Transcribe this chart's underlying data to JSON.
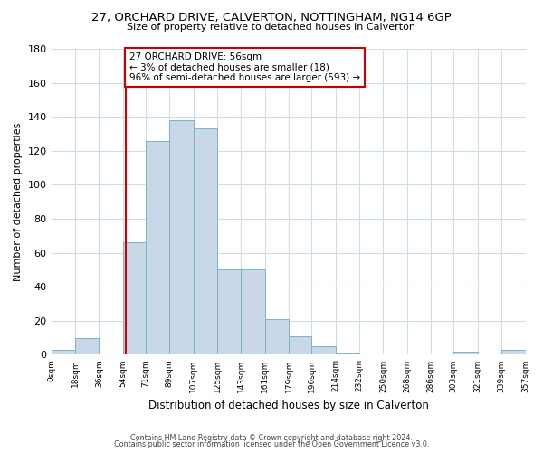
{
  "title": "27, ORCHARD DRIVE, CALVERTON, NOTTINGHAM, NG14 6GP",
  "subtitle": "Size of property relative to detached houses in Calverton",
  "xlabel": "Distribution of detached houses by size in Calverton",
  "ylabel": "Number of detached properties",
  "bar_edges": [
    0,
    18,
    36,
    54,
    71,
    89,
    107,
    125,
    143,
    161,
    179,
    196,
    214,
    232,
    250,
    268,
    286,
    303,
    321,
    339,
    357
  ],
  "bar_heights": [
    3,
    10,
    0,
    66,
    126,
    138,
    133,
    50,
    50,
    21,
    11,
    5,
    1,
    0,
    0,
    0,
    0,
    2,
    0,
    3
  ],
  "bar_color": "#c8d8e8",
  "bar_edgecolor": "#7ab4cc",
  "property_line_x": 56,
  "property_line_color": "#cc0000",
  "ylim": [
    0,
    180
  ],
  "yticks": [
    0,
    20,
    40,
    60,
    80,
    100,
    120,
    140,
    160,
    180
  ],
  "xtick_labels": [
    "0sqm",
    "18sqm",
    "36sqm",
    "54sqm",
    "71sqm",
    "89sqm",
    "107sqm",
    "125sqm",
    "143sqm",
    "161sqm",
    "179sqm",
    "196sqm",
    "214sqm",
    "232sqm",
    "250sqm",
    "268sqm",
    "286sqm",
    "303sqm",
    "321sqm",
    "339sqm",
    "357sqm"
  ],
  "annotation_title": "27 ORCHARD DRIVE: 56sqm",
  "annotation_line1": "← 3% of detached houses are smaller (18)",
  "annotation_line2": "96% of semi-detached houses are larger (593) →",
  "annotation_box_color": "#ffffff",
  "annotation_box_edgecolor": "#cc0000",
  "footer1": "Contains HM Land Registry data © Crown copyright and database right 2024.",
  "footer2": "Contains public sector information licensed under the Open Government Licence v3.0.",
  "background_color": "#ffffff",
  "grid_color": "#d0dde8"
}
